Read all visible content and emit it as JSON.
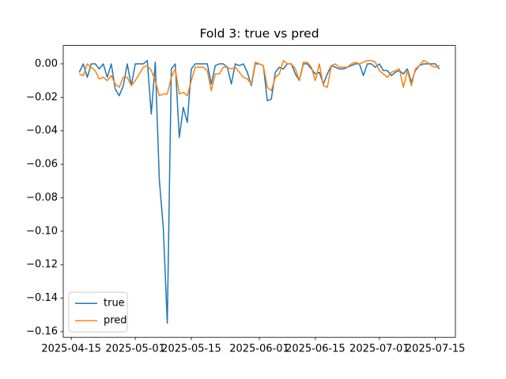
{
  "chart_data": {
    "type": "line",
    "title": "Fold 3: true vs pred",
    "x": [
      "2025-04-17",
      "2025-04-18",
      "2025-04-19",
      "2025-04-20",
      "2025-04-21",
      "2025-04-22",
      "2025-04-23",
      "2025-04-24",
      "2025-04-25",
      "2025-04-26",
      "2025-04-27",
      "2025-04-28",
      "2025-04-29",
      "2025-04-30",
      "2025-05-01",
      "2025-05-02",
      "2025-05-03",
      "2025-05-04",
      "2025-05-05",
      "2025-05-06",
      "2025-05-07",
      "2025-05-08",
      "2025-05-09",
      "2025-05-10",
      "2025-05-11",
      "2025-05-12",
      "2025-05-13",
      "2025-05-14",
      "2025-05-15",
      "2025-05-16",
      "2025-05-17",
      "2025-05-18",
      "2025-05-19",
      "2025-05-20",
      "2025-05-21",
      "2025-05-22",
      "2025-05-23",
      "2025-05-24",
      "2025-05-25",
      "2025-05-26",
      "2025-05-27",
      "2025-05-28",
      "2025-05-29",
      "2025-05-30",
      "2025-05-31",
      "2025-06-01",
      "2025-06-02",
      "2025-06-03",
      "2025-06-04",
      "2025-06-05",
      "2025-06-06",
      "2025-06-07",
      "2025-06-08",
      "2025-06-09",
      "2025-06-10",
      "2025-06-11",
      "2025-06-12",
      "2025-06-13",
      "2025-06-14",
      "2025-06-15",
      "2025-06-16",
      "2025-06-17",
      "2025-06-18",
      "2025-06-19",
      "2025-06-20",
      "2025-06-21",
      "2025-06-22",
      "2025-06-23",
      "2025-06-24",
      "2025-06-25",
      "2025-06-26",
      "2025-06-27",
      "2025-06-28",
      "2025-06-29",
      "2025-06-30",
      "2025-07-01",
      "2025-07-02",
      "2025-07-03",
      "2025-07-04",
      "2025-07-05",
      "2025-07-06",
      "2025-07-07",
      "2025-07-08",
      "2025-07-09",
      "2025-07-10",
      "2025-07-11",
      "2025-07-12",
      "2025-07-13",
      "2025-07-14",
      "2025-07-15",
      "2025-07-16"
    ],
    "series": [
      {
        "name": "true",
        "color": "#1f77b4",
        "values": [
          -0.005,
          0.0,
          -0.008,
          0.0,
          0.0,
          -0.003,
          0.0,
          -0.008,
          0.0,
          -0.015,
          -0.019,
          -0.013,
          0.0,
          -0.013,
          0.0,
          0.0,
          0.0,
          0.002,
          -0.03,
          0.001,
          -0.069,
          -0.098,
          -0.155,
          -0.003,
          0.0,
          -0.044,
          -0.026,
          -0.035,
          -0.003,
          0.0,
          0.0,
          0.0,
          0.0,
          -0.012,
          -0.001,
          0.0,
          0.0,
          -0.002,
          -0.012,
          0.0,
          -0.001,
          0.0,
          -0.005,
          -0.013,
          0.0,
          0.0,
          -0.001,
          -0.022,
          -0.021,
          -0.005,
          -0.002,
          -0.003,
          0.0,
          0.0,
          -0.006,
          -0.01,
          0.0,
          0.0,
          -0.003,
          -0.006,
          -0.005,
          -0.012,
          -0.006,
          -0.001,
          -0.002,
          -0.003,
          -0.003,
          -0.002,
          -0.001,
          0.0,
          0.0,
          -0.007,
          0.0,
          0.0,
          -0.002,
          0.0,
          -0.004,
          -0.004,
          -0.007,
          -0.005,
          -0.004,
          -0.006,
          -0.003,
          -0.011,
          -0.004,
          -0.001,
          0.0,
          0.0,
          0.0,
          0.0,
          -0.003
        ]
      },
      {
        "name": "pred",
        "color": "#ff7f0e",
        "values": [
          -0.006,
          -0.007,
          0.0,
          -0.002,
          -0.004,
          -0.009,
          -0.008,
          -0.01,
          -0.007,
          -0.012,
          -0.014,
          -0.008,
          -0.008,
          -0.013,
          -0.01,
          -0.006,
          -0.002,
          -0.001,
          -0.004,
          -0.01,
          -0.019,
          -0.018,
          -0.018,
          -0.008,
          -0.003,
          -0.018,
          -0.017,
          -0.019,
          -0.01,
          -0.002,
          -0.002,
          -0.002,
          -0.004,
          -0.016,
          -0.006,
          -0.006,
          -0.002,
          -0.002,
          -0.003,
          -0.002,
          -0.005,
          -0.008,
          -0.009,
          -0.012,
          0.001,
          0.0,
          -0.001,
          -0.014,
          -0.016,
          -0.008,
          -0.006,
          0.002,
          0.0,
          0.0,
          -0.003,
          -0.01,
          0.001,
          0.001,
          -0.002,
          -0.01,
          0.0,
          -0.013,
          -0.014,
          -0.001,
          0.0,
          -0.002,
          -0.002,
          -0.002,
          0.0,
          0.001,
          0.0,
          0.001,
          0.002,
          0.002,
          0.001,
          -0.004,
          -0.006,
          -0.008,
          -0.005,
          -0.004,
          -0.003,
          -0.014,
          -0.004,
          -0.013,
          -0.003,
          -0.001,
          0.002,
          0.001,
          -0.001,
          -0.002,
          -0.001
        ]
      }
    ],
    "xlim": [
      "2025-04-13",
      "2025-07-20"
    ],
    "xticks": [
      "2025-04-15",
      "2025-05-01",
      "2025-05-15",
      "2025-06-01",
      "2025-06-15",
      "2025-07-01",
      "2025-07-15"
    ],
    "ylim": [
      -0.1634,
      0.011
    ],
    "yticks": [
      {
        "value": 0.0,
        "label": "0.00"
      },
      {
        "value": -0.02,
        "label": "−0.02"
      },
      {
        "value": -0.04,
        "label": "−0.04"
      },
      {
        "value": -0.06,
        "label": "−0.06"
      },
      {
        "value": -0.08,
        "label": "−0.08"
      },
      {
        "value": -0.1,
        "label": "−0.10"
      },
      {
        "value": -0.12,
        "label": "−0.12"
      },
      {
        "value": -0.14,
        "label": "−0.14"
      },
      {
        "value": -0.16,
        "label": "−0.16"
      }
    ],
    "legend": "lower left"
  }
}
